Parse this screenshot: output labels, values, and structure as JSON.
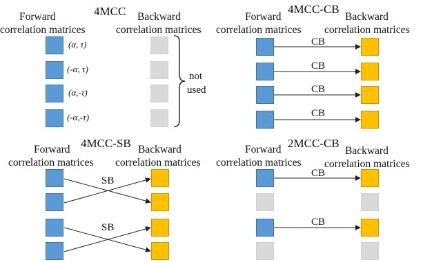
{
  "panels": {
    "p1": {
      "title": "4MCC",
      "fwd_line1": "Forward",
      "fwd_line2": "correlation matrices",
      "bwd_line1": "Backward",
      "bwd_line2": "correlation matrices",
      "params": [
        "(α, τ)",
        "(-α, τ)",
        "(α,-τ)",
        "(-α,-τ)"
      ],
      "brace_label_1": "not",
      "brace_label_2": "used",
      "colors": {
        "forward": "#5b9bd5",
        "backward": "#d9d9d9"
      }
    },
    "p2": {
      "title": "4MCC-CB",
      "fwd_line1": "Forward",
      "fwd_line2": "correlation matrices",
      "bwd_line1": "Backward",
      "bwd_line2": "correlation matrices",
      "arrow_labels": [
        "CB",
        "CB",
        "CB",
        "CB"
      ],
      "colors": {
        "forward": "#5b9bd5",
        "backward": "#ffc000"
      }
    },
    "p3": {
      "title": "4MCC-SB",
      "fwd_line1": "Forward",
      "fwd_line2": "correlation matrices",
      "bwd_line1": "Backward",
      "bwd_line2": "correlation matrices",
      "arrow_labels": [
        "SB",
        "SB"
      ],
      "colors": {
        "forward": "#5b9bd5",
        "backward": "#ffc000"
      }
    },
    "p4": {
      "title": "2MCC-CB",
      "fwd_line1": "Forward",
      "fwd_line2": "correlation matrices",
      "bwd_line1": "Backward",
      "bwd_line2": "correlation matrices",
      "arrow_labels": [
        "CB",
        "CB"
      ],
      "colors": {
        "forward": "#5b9bd5",
        "backward": "#ffc000",
        "unused": "#d9d9d9"
      }
    }
  }
}
